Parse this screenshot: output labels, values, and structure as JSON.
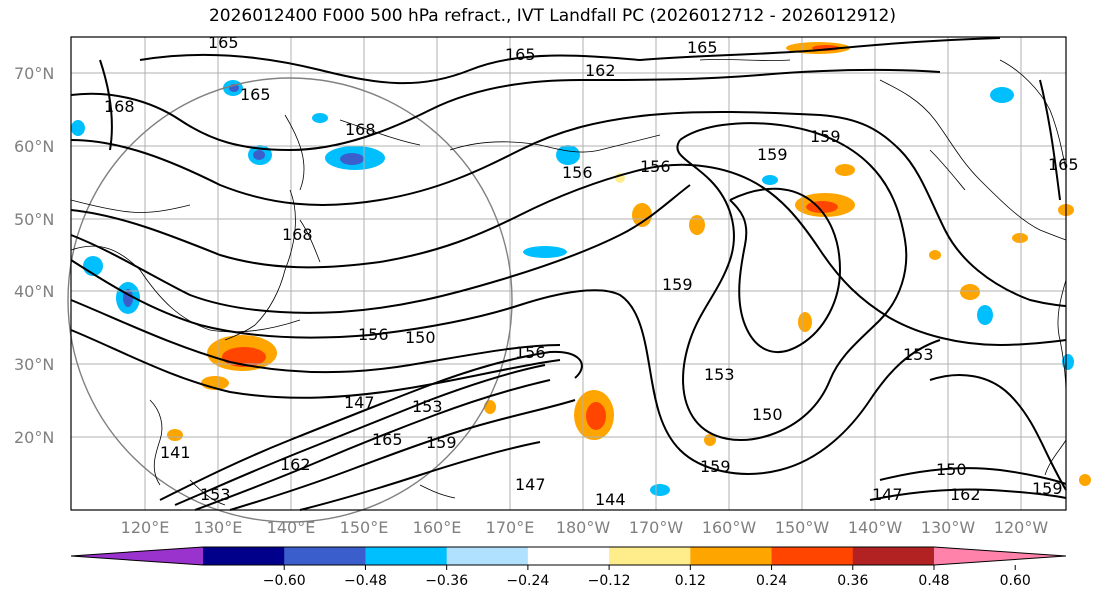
{
  "title": "2026012400 F000 500 hPa refract., IVT Landfall PC (2026012712 - 2026012912)",
  "lat_labels": [
    "70°N",
    "60°N",
    "50°N",
    "40°N",
    "30°N",
    "20°N"
  ],
  "lon_labels": [
    "120°E",
    "130°E",
    "140°E",
    "150°E",
    "160°E",
    "170°E",
    "180°W",
    "170°W",
    "160°W",
    "150°W",
    "140°W",
    "130°W",
    "120°W"
  ],
  "colorbar": {
    "colors": [
      "#9a32cd",
      "#00008b",
      "#3a5fcd",
      "#00bfff",
      "#b0e2ff",
      "#ffffff",
      "#ffec8b",
      "#ffa500",
      "#ff4500",
      "#b22222",
      "#ff82ab"
    ],
    "ticks": [
      "−0.60",
      "−0.48",
      "−0.36",
      "−0.24",
      "−0.12",
      "0.12",
      "0.24",
      "0.36",
      "0.48",
      "0.60"
    ]
  },
  "contour_labels": [
    "165",
    "165",
    "162",
    "165",
    "168",
    "165",
    "168",
    "156",
    "156",
    "159",
    "159",
    "168",
    "159",
    "156",
    "150",
    "156",
    "153",
    "153",
    "147",
    "153",
    "165",
    "159",
    "147",
    "150",
    "141",
    "159",
    "150",
    "162",
    "159",
    "165",
    "144",
    "147",
    "153",
    "162"
  ]
}
